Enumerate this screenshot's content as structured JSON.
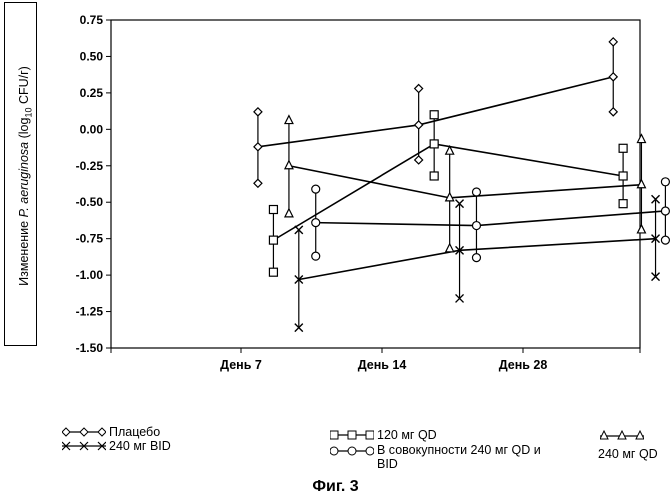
{
  "chart_data": {
    "type": "line",
    "title": "",
    "xlabel": "",
    "ylabel_prefix": "Изменение ",
    "ylabel_italic": "P. aeruginosa",
    "ylabel_suffix_1": " (log",
    "ylabel_subscript": "10",
    "ylabel_suffix_2": " CFU/г)",
    "categories": [
      "День 7",
      "День 14",
      "День 28"
    ],
    "ylim": [
      -1.5,
      0.75
    ],
    "yticks": [
      -1.5,
      -1.25,
      -1.0,
      -0.75,
      -0.5,
      -0.25,
      0.0,
      0.25,
      0.5,
      0.75
    ],
    "ytick_labels": [
      "-1.50",
      "-1.25",
      "-1.00",
      "-0.75",
      "-0.50",
      "-0.25",
      "0.00",
      "0.25",
      "0.50",
      "0.75"
    ],
    "series": [
      {
        "name": "Плацебо",
        "marker": "diamond",
        "x": [
          0.12,
          1.26,
          2.64
        ],
        "values": [
          -0.12,
          0.03,
          0.36
        ],
        "err_low": [
          -0.37,
          -0.21,
          0.12
        ],
        "err_high": [
          0.12,
          0.28,
          0.6
        ]
      },
      {
        "name": "120 мг QD",
        "marker": "square",
        "x": [
          0.23,
          1.37,
          2.71
        ],
        "values": [
          -0.76,
          -0.1,
          -0.32
        ],
        "err_low": [
          -0.98,
          -0.32,
          -0.51
        ],
        "err_high": [
          -0.55,
          0.1,
          -0.13
        ]
      },
      {
        "name": "240 мг QD",
        "marker": "triangle",
        "x": [
          0.34,
          1.48,
          2.84
        ],
        "values": [
          -0.25,
          -0.47,
          -0.38
        ],
        "err_low": [
          -0.58,
          -0.82,
          -0.69
        ],
        "err_high": [
          0.06,
          -0.15,
          -0.07
        ]
      },
      {
        "name": "240 мг BID",
        "marker": "x",
        "x": [
          0.41,
          1.55,
          2.94
        ],
        "values": [
          -1.03,
          -0.83,
          -0.75
        ],
        "err_low": [
          -1.36,
          -1.16,
          -1.01
        ],
        "err_high": [
          -0.69,
          -0.51,
          -0.48
        ]
      },
      {
        "name": "В совокупности 240 мг QD и BID",
        "marker": "circle",
        "x": [
          0.53,
          1.67,
          3.01
        ],
        "values": [
          -0.64,
          -0.66,
          -0.56
        ],
        "err_low": [
          -0.87,
          -0.88,
          -0.76
        ],
        "err_high": [
          -0.41,
          -0.43,
          -0.36
        ]
      }
    ],
    "legend_placement": "bottom"
  },
  "legend": {
    "placebo": "Плацебо",
    "qd120": "120 мг QD",
    "qd240": "240 мг QD",
    "bid240": "240 мг BID",
    "combined_line1": "В совокупности 240 мг QD и",
    "combined_line2": "BID"
  },
  "figure_caption": "Фиг. 3"
}
